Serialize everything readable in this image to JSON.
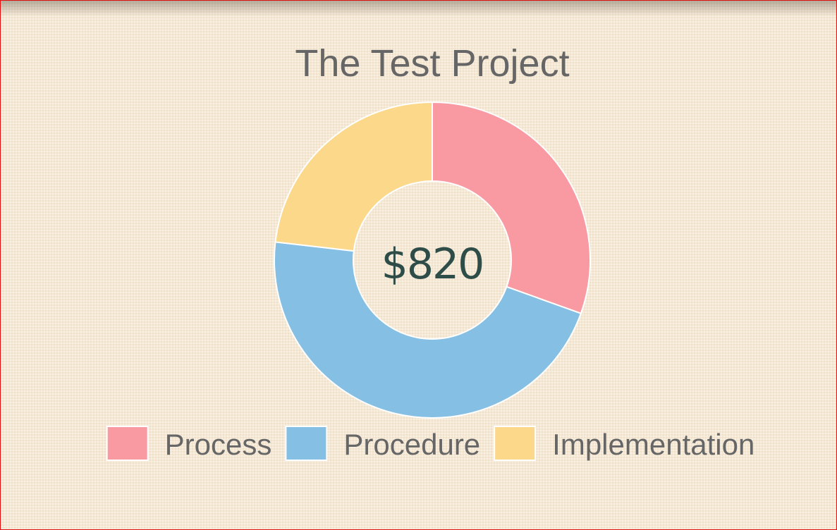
{
  "chart_data": {
    "type": "doughnut",
    "title": "The Test Project",
    "center_label": "$820",
    "categories": [
      "Process",
      "Procedure",
      "Implementation"
    ],
    "values": [
      250,
      380,
      190
    ],
    "colors": [
      "#f99aa3",
      "#85bfe3",
      "#fbd88a"
    ],
    "legend_position": "bottom"
  }
}
